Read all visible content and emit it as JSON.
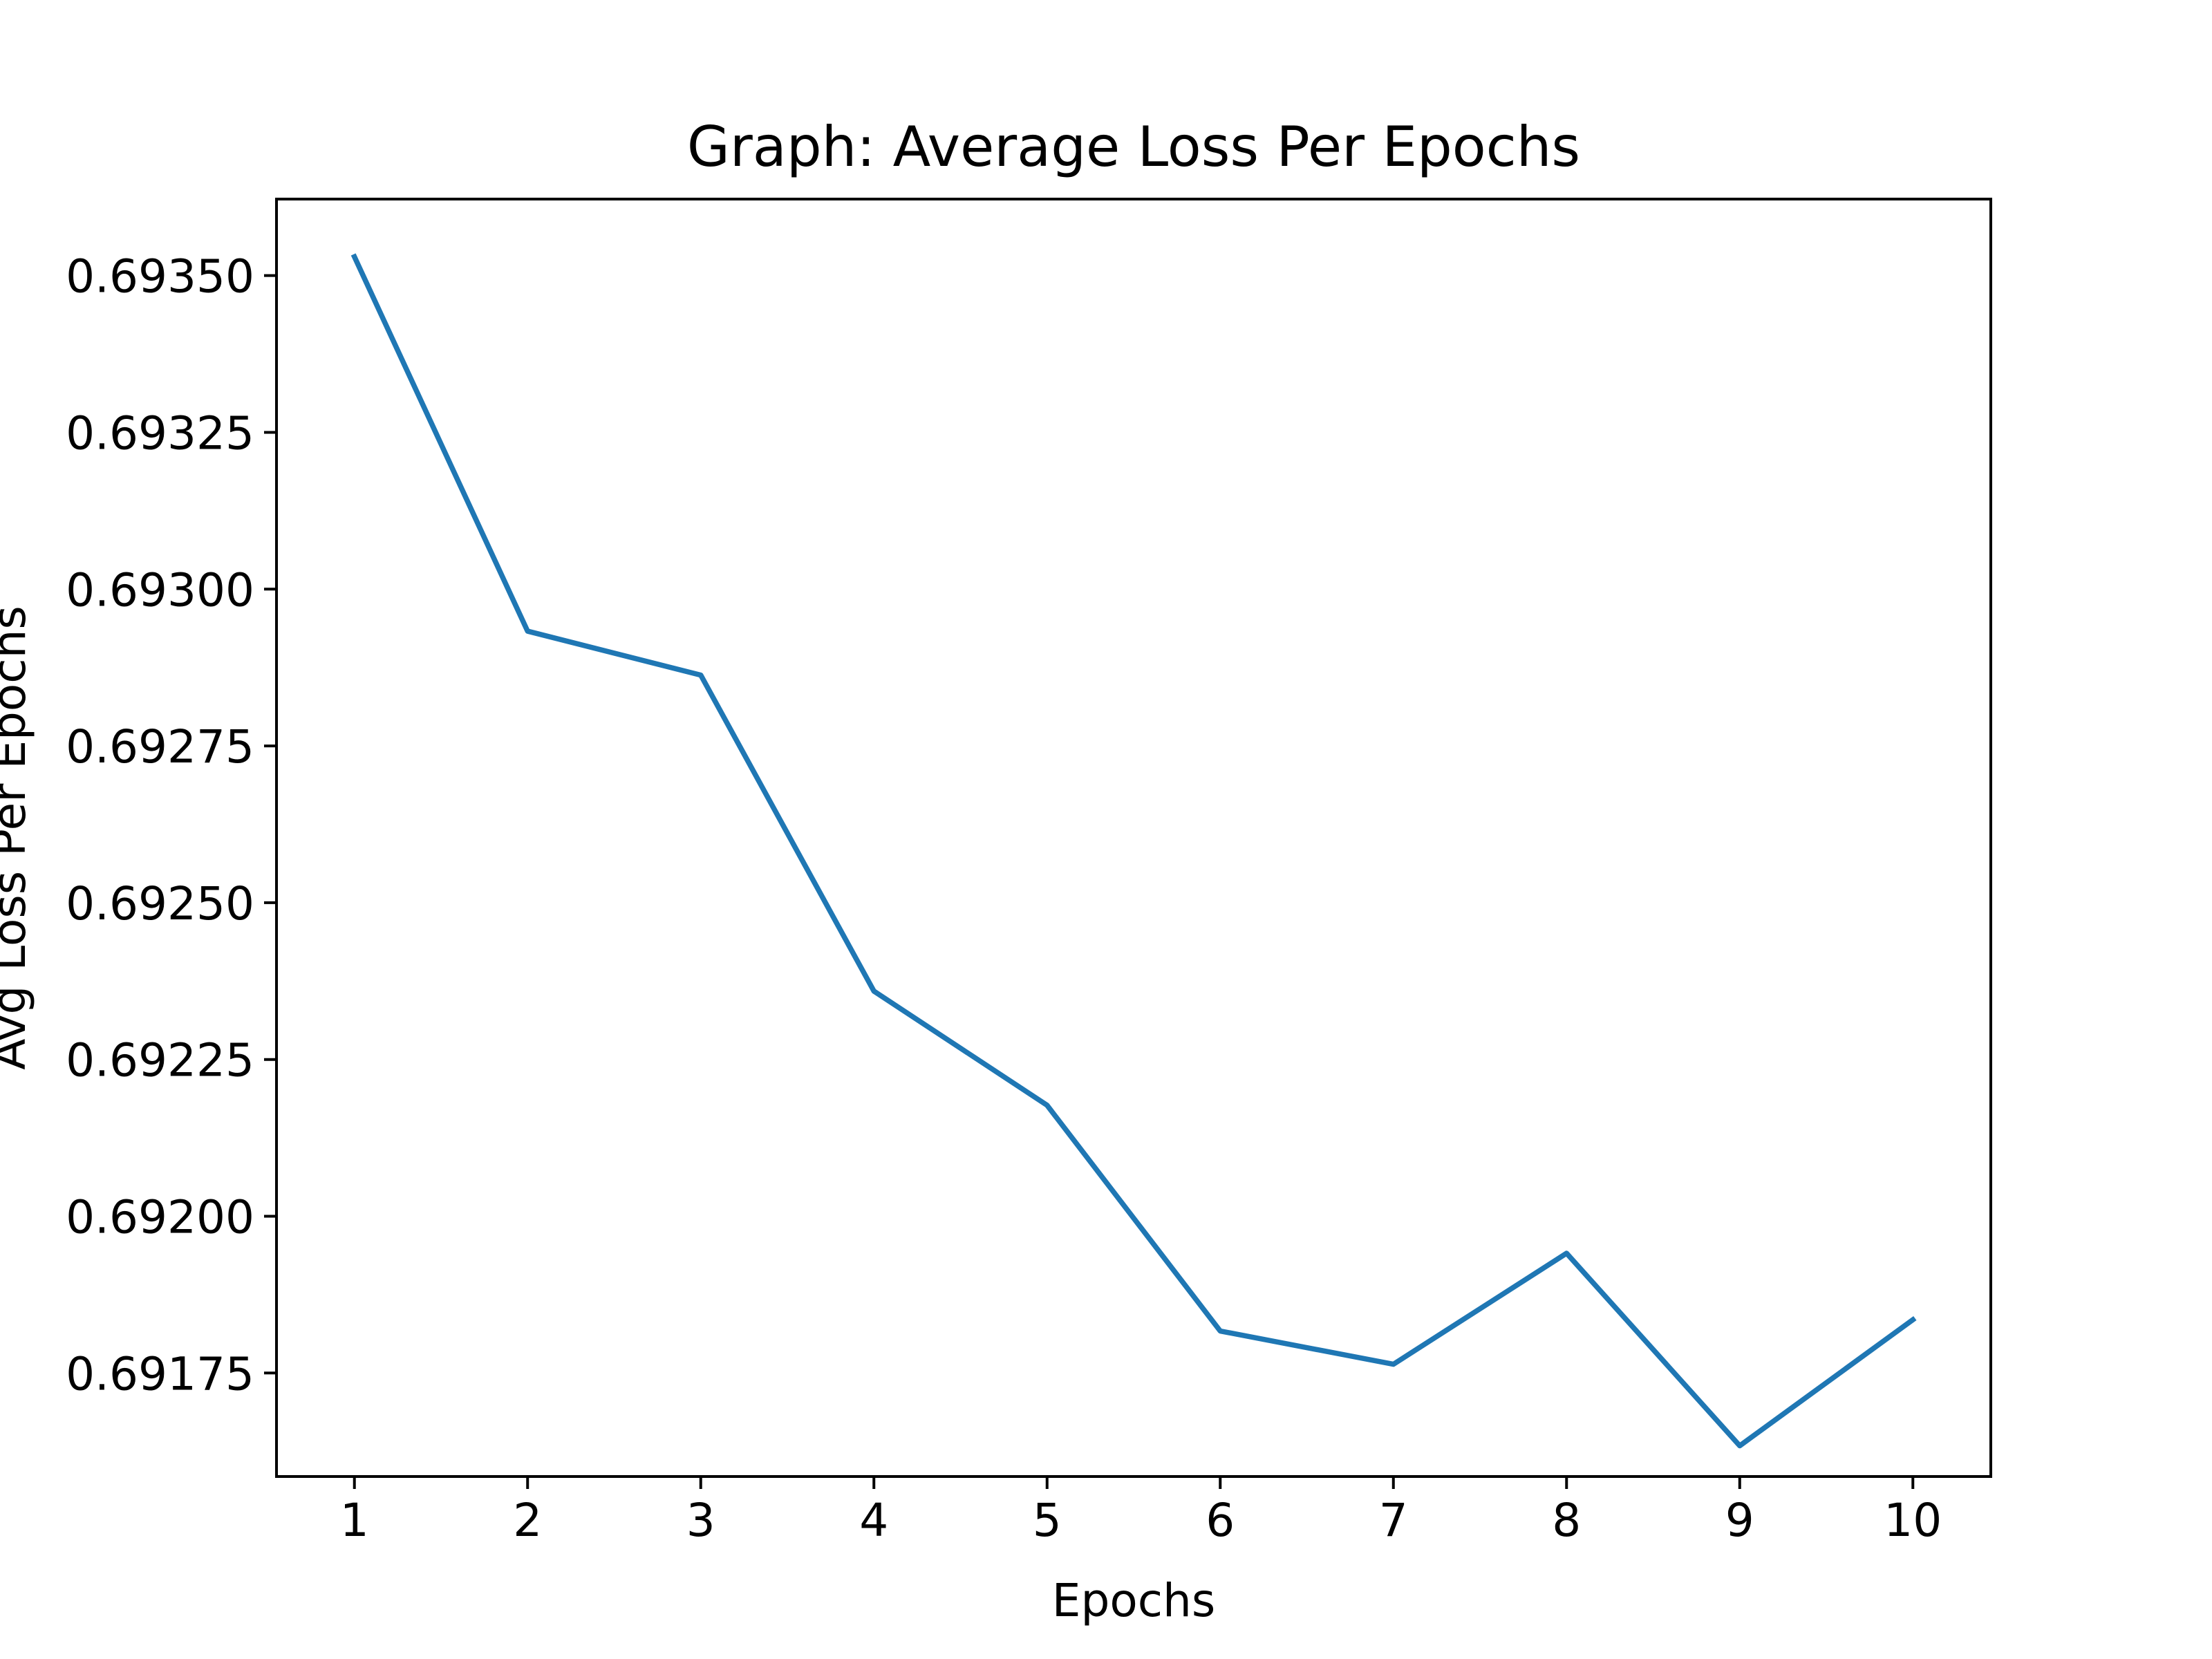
{
  "chart_data": {
    "type": "line",
    "title": "Graph: Average Loss Per Epochs",
    "xlabel": "Epochs",
    "ylabel": "Avg Loss Per Epochs",
    "x": [
      1,
      2,
      3,
      4,
      5,
      6,
      7,
      8,
      9,
      10
    ],
    "series": [
      {
        "values": [
          0.69353,
          0.692933,
          0.692863,
          0.692359,
          0.692177,
          0.691817,
          0.691764,
          0.691941,
          0.691634,
          0.691835
        ]
      }
    ],
    "xlim": [
      0.55,
      10.45
    ],
    "ylim": [
      0.691585,
      0.693622
    ],
    "xticks": [
      "1",
      "2",
      "3",
      "4",
      "5",
      "6",
      "7",
      "8",
      "9",
      "10"
    ],
    "yticks": [
      "0.69175",
      "0.69200",
      "0.69225",
      "0.69250",
      "0.69275",
      "0.69300",
      "0.69325",
      "0.69350"
    ],
    "ytick_values": [
      0.69175,
      0.692,
      0.69225,
      0.6925,
      0.69275,
      0.693,
      0.69325,
      0.6935
    ],
    "grid": false,
    "line_color": "#1f77b4"
  }
}
